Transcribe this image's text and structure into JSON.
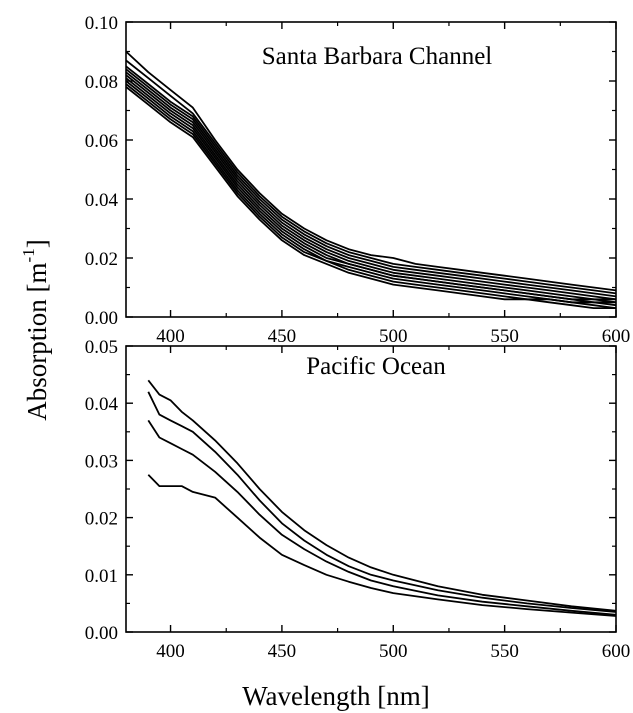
{
  "figure": {
    "ylabel_main": "Absorption [m",
    "ylabel_sup": "-1",
    "ylabel_close": "]",
    "xlabel": "Wavelength [nm]"
  },
  "chart_data": [
    {
      "type": "line",
      "title": "Santa Barbara Channel",
      "xlabel": "Wavelength [nm]",
      "ylabel": "Absorption [m-1]",
      "xlim": [
        380,
        600
      ],
      "ylim": [
        0,
        0.1
      ],
      "xticks": [
        "400",
        "450",
        "500",
        "550",
        "600"
      ],
      "yticks": [
        "0.00",
        "0.02",
        "0.04",
        "0.06",
        "0.08",
        "0.10"
      ],
      "grid": false,
      "x": [
        380,
        390,
        400,
        410,
        420,
        430,
        440,
        450,
        460,
        470,
        480,
        490,
        500,
        510,
        520,
        530,
        540,
        550,
        560,
        570,
        580,
        590,
        600
      ],
      "series": [
        {
          "values": [
            0.09,
            0.083,
            0.077,
            0.071,
            0.06,
            0.05,
            0.042,
            0.035,
            0.03,
            0.026,
            0.023,
            0.021,
            0.02,
            0.018,
            0.017,
            0.016,
            0.015,
            0.014,
            0.013,
            0.012,
            0.011,
            0.01,
            0.009
          ]
        },
        {
          "values": [
            0.087,
            0.081,
            0.075,
            0.069,
            0.059,
            0.049,
            0.041,
            0.034,
            0.029,
            0.025,
            0.022,
            0.02,
            0.018,
            0.017,
            0.016,
            0.015,
            0.014,
            0.013,
            0.012,
            0.011,
            0.01,
            0.009,
            0.008
          ]
        },
        {
          "values": [
            0.085,
            0.079,
            0.073,
            0.068,
            0.058,
            0.048,
            0.04,
            0.033,
            0.028,
            0.024,
            0.021,
            0.019,
            0.017,
            0.016,
            0.015,
            0.014,
            0.013,
            0.012,
            0.011,
            0.01,
            0.009,
            0.008,
            0.007
          ]
        },
        {
          "values": [
            0.084,
            0.078,
            0.072,
            0.067,
            0.057,
            0.047,
            0.039,
            0.032,
            0.027,
            0.023,
            0.02,
            0.018,
            0.016,
            0.015,
            0.014,
            0.013,
            0.012,
            0.011,
            0.01,
            0.009,
            0.008,
            0.007,
            0.006
          ]
        },
        {
          "values": [
            0.083,
            0.077,
            0.071,
            0.066,
            0.056,
            0.046,
            0.038,
            0.031,
            0.026,
            0.022,
            0.019,
            0.017,
            0.015,
            0.014,
            0.013,
            0.012,
            0.011,
            0.01,
            0.009,
            0.008,
            0.007,
            0.006,
            0.006
          ]
        },
        {
          "values": [
            0.082,
            0.076,
            0.07,
            0.065,
            0.055,
            0.045,
            0.037,
            0.03,
            0.025,
            0.021,
            0.018,
            0.016,
            0.014,
            0.013,
            0.012,
            0.011,
            0.01,
            0.009,
            0.008,
            0.007,
            0.006,
            0.006,
            0.005
          ]
        },
        {
          "values": [
            0.081,
            0.075,
            0.069,
            0.064,
            0.054,
            0.044,
            0.036,
            0.029,
            0.024,
            0.02,
            0.018,
            0.016,
            0.014,
            0.013,
            0.012,
            0.011,
            0.01,
            0.009,
            0.008,
            0.007,
            0.006,
            0.005,
            0.005
          ]
        },
        {
          "values": [
            0.08,
            0.074,
            0.068,
            0.063,
            0.053,
            0.043,
            0.035,
            0.028,
            0.023,
            0.019,
            0.017,
            0.015,
            0.013,
            0.012,
            0.011,
            0.01,
            0.009,
            0.008,
            0.007,
            0.006,
            0.005,
            0.005,
            0.004
          ]
        },
        {
          "values": [
            0.079,
            0.073,
            0.067,
            0.062,
            0.052,
            0.042,
            0.034,
            0.027,
            0.022,
            0.019,
            0.016,
            0.014,
            0.012,
            0.011,
            0.01,
            0.009,
            0.008,
            0.007,
            0.006,
            0.006,
            0.005,
            0.004,
            0.003
          ]
        },
        {
          "values": [
            0.078,
            0.072,
            0.066,
            0.061,
            0.051,
            0.041,
            0.033,
            0.026,
            0.021,
            0.018,
            0.015,
            0.013,
            0.011,
            0.01,
            0.009,
            0.008,
            0.007,
            0.006,
            0.006,
            0.005,
            0.004,
            0.003,
            0.003
          ]
        }
      ]
    },
    {
      "type": "line",
      "title": "Pacific Ocean",
      "xlabel": "Wavelength [nm]",
      "ylabel": "Absorption [m-1]",
      "xlim": [
        380,
        600
      ],
      "ylim": [
        0,
        0.05
      ],
      "xticks": [
        "400",
        "450",
        "500",
        "550",
        "600"
      ],
      "yticks": [
        "0.00",
        "0.01",
        "0.02",
        "0.03",
        "0.04",
        "0.05"
      ],
      "grid": false,
      "x": [
        390,
        395,
        400,
        405,
        410,
        420,
        430,
        440,
        450,
        460,
        470,
        480,
        490,
        500,
        520,
        540,
        560,
        580,
        600
      ],
      "series": [
        {
          "values": [
            0.044,
            0.0415,
            0.0405,
            0.0385,
            0.037,
            0.0335,
            0.0295,
            0.025,
            0.021,
            0.0178,
            0.0152,
            0.013,
            0.0113,
            0.01,
            0.008,
            0.0065,
            0.0055,
            0.0045,
            0.0037
          ]
        },
        {
          "values": [
            0.042,
            0.038,
            0.037,
            0.036,
            0.035,
            0.0315,
            0.0275,
            0.023,
            0.019,
            0.016,
            0.0135,
            0.0115,
            0.01,
            0.009,
            0.0073,
            0.006,
            0.005,
            0.0042,
            0.0035
          ]
        },
        {
          "values": [
            0.037,
            0.034,
            0.033,
            0.032,
            0.031,
            0.028,
            0.0245,
            0.0205,
            0.017,
            0.0145,
            0.0123,
            0.0105,
            0.009,
            0.008,
            0.0064,
            0.0053,
            0.0045,
            0.0037,
            0.003
          ]
        },
        {
          "values": [
            0.0275,
            0.0255,
            0.0255,
            0.0255,
            0.0245,
            0.0235,
            0.02,
            0.0165,
            0.0135,
            0.0117,
            0.01,
            0.0088,
            0.0077,
            0.0068,
            0.0057,
            0.0047,
            0.004,
            0.0034,
            0.0028
          ]
        }
      ]
    }
  ]
}
